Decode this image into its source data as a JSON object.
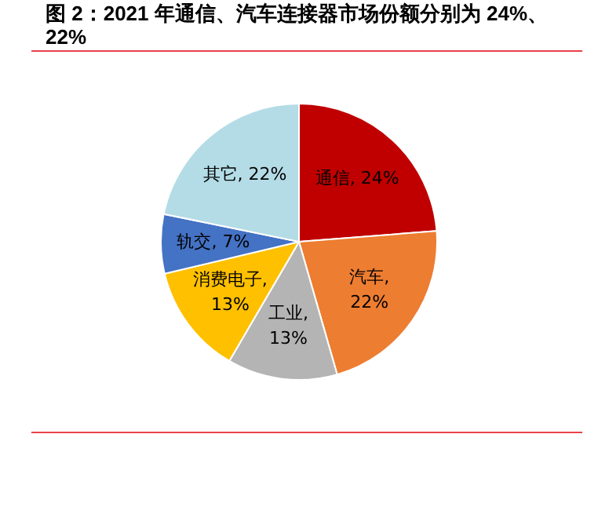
{
  "chart_data": {
    "type": "pie",
    "title": "图 2：2021 年通信、汽车连接器市场份额分别为 24%、22%",
    "categories": [
      "通信",
      "汽车",
      "工业",
      "消费电子",
      "轨交",
      "其它"
    ],
    "values": [
      24,
      22,
      13,
      13,
      7,
      22
    ],
    "colors": [
      "#c00000",
      "#ed7d31",
      "#b4b4b4",
      "#ffc000",
      "#4472c4",
      "#b4dce6"
    ],
    "value_labels": [
      ", 24%",
      ", 22%",
      ", 13%",
      ", 13%",
      ", 7%",
      ", 22%"
    ],
    "legend": false
  }
}
